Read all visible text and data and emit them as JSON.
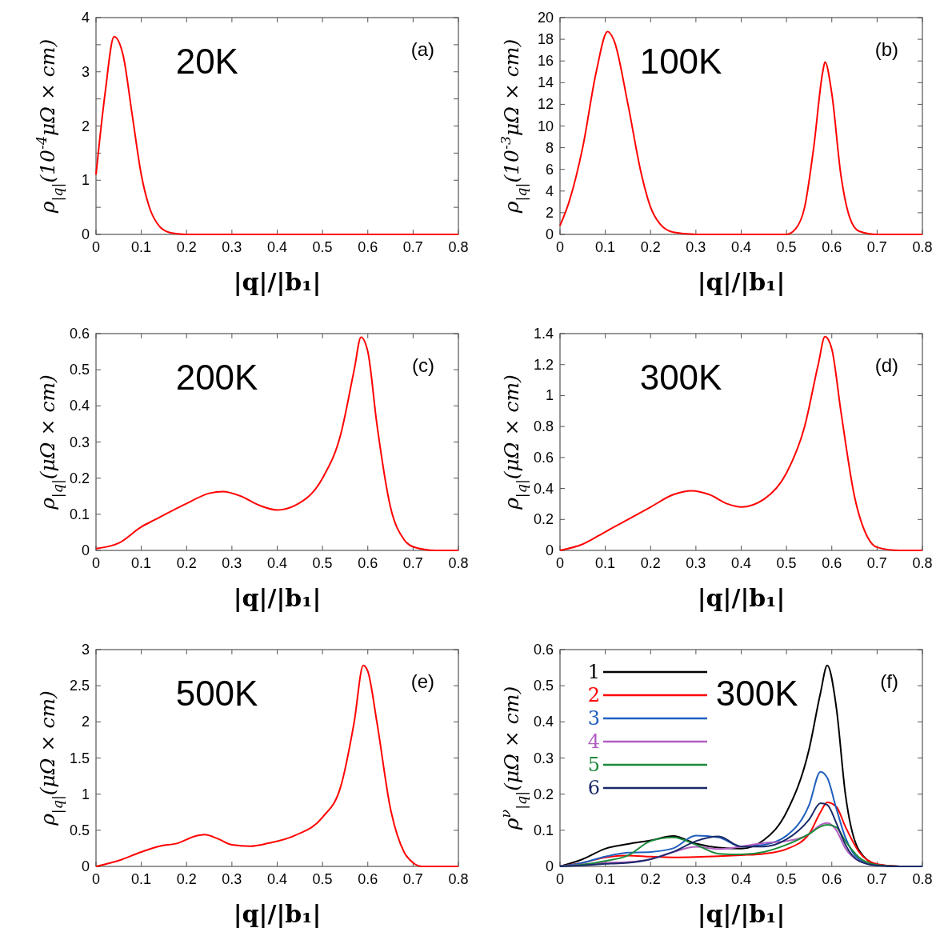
{
  "chart_data": [
    {
      "type": "line",
      "xlabel": "|q|/|b₁|",
      "ylabel": "ρ$_{|q|}$(10$^{-4}$μΩ × cm)",
      "annotations": [
        "20K",
        "(a)"
      ],
      "xlim": [
        0,
        0.8
      ],
      "ylim": [
        0,
        4
      ],
      "xticks": [
        0,
        0.1,
        0.2,
        0.3,
        0.4,
        0.5,
        0.6,
        0.7,
        0.8
      ],
      "yticks": [
        0,
        {
          "value": 0.5,
          "label": null
        },
        1,
        {
          "value": 1.5,
          "label": null
        },
        2,
        {
          "value": 2.5,
          "label": null
        },
        3,
        {
          "value": 3.5,
          "label": null
        },
        4
      ],
      "grid": false,
      "legend": false,
      "x": [
        0,
        0.02,
        0.04,
        0.06,
        0.08,
        0.1,
        0.12,
        0.14,
        0.16,
        0.18,
        0.2,
        0.3,
        0.4,
        0.5,
        0.6,
        0.7,
        0.8
      ],
      "series": [
        {
          "color": "#ff0000",
          "values": [
            1.1,
            2.6,
            3.65,
            3.3,
            2.2,
            1.1,
            0.45,
            0.15,
            0.04,
            0.01,
            0,
            0,
            0,
            0,
            0,
            0,
            0
          ]
        }
      ]
    },
    {
      "type": "line",
      "xlabel": "|q|/|b₁|",
      "ylabel": "ρ$_{|q|}$(10$^{-3}$μΩ × cm)",
      "annotations": [
        "100K",
        "(b)"
      ],
      "xlim": [
        0,
        0.8
      ],
      "ylim": [
        0,
        20
      ],
      "xticks": [
        0,
        0.1,
        0.2,
        0.3,
        0.4,
        0.5,
        0.6,
        0.7,
        0.8
      ],
      "yticks": [
        0,
        2,
        4,
        6,
        8,
        10,
        12,
        14,
        16,
        18,
        20
      ],
      "grid": false,
      "legend": false,
      "x": [
        0,
        0.02,
        0.05,
        0.08,
        0.105,
        0.12,
        0.15,
        0.18,
        0.2,
        0.22,
        0.25,
        0.3,
        0.5,
        0.52,
        0.54,
        0.56,
        0.58,
        0.585,
        0.6,
        0.62,
        0.64,
        0.66,
        0.7,
        0.8
      ],
      "series": [
        {
          "color": "#ff0000",
          "values": [
            0.8,
            3,
            8,
            15,
            18.7,
            17.8,
            12,
            5.5,
            2.5,
            1,
            0.2,
            0,
            0,
            0.5,
            2.5,
            8,
            15,
            15.9,
            13,
            5.5,
            1.5,
            0.3,
            0,
            0
          ]
        }
      ]
    },
    {
      "type": "line",
      "xlabel": "|q|/|b₁|",
      "ylabel": "ρ$_{|q|}$(μΩ × cm)",
      "annotations": [
        "200K",
        "(c)"
      ],
      "xlim": [
        0,
        0.8
      ],
      "ylim": [
        0,
        0.6
      ],
      "xticks": [
        0,
        0.1,
        0.2,
        0.3,
        0.4,
        0.5,
        0.6,
        0.7,
        0.8
      ],
      "yticks": [
        0,
        0.1,
        0.2,
        0.3,
        0.4,
        0.5,
        0.6
      ],
      "grid": false,
      "legend": false,
      "x": [
        0,
        0.05,
        0.1,
        0.13,
        0.2,
        0.25,
        0.28,
        0.32,
        0.36,
        0.4,
        0.44,
        0.5,
        0.54,
        0.57,
        0.585,
        0.6,
        0.62,
        0.65,
        0.68,
        0.7,
        0.75,
        0.8
      ],
      "series": [
        {
          "color": "#ff0000",
          "values": [
            0.005,
            0.02,
            0.065,
            0.085,
            0.13,
            0.158,
            0.163,
            0.15,
            0.125,
            0.112,
            0.125,
            0.2,
            0.32,
            0.5,
            0.59,
            0.55,
            0.35,
            0.12,
            0.03,
            0.01,
            0,
            0
          ]
        }
      ]
    },
    {
      "type": "line",
      "xlabel": "|q|/|b₁|",
      "ylabel": "ρ$_{|q|}$(μΩ × cm)",
      "annotations": [
        "300K",
        "(d)"
      ],
      "xlim": [
        0,
        0.8
      ],
      "ylim": [
        0,
        1.4
      ],
      "xticks": [
        0,
        0.1,
        0.2,
        0.3,
        0.4,
        0.5,
        0.6,
        0.7,
        0.8
      ],
      "yticks": [
        0,
        0.2,
        0.4,
        0.6,
        0.8,
        1,
        1.2,
        1.4
      ],
      "grid": false,
      "legend": false,
      "x": [
        0,
        0.05,
        0.1,
        0.15,
        0.2,
        0.25,
        0.29,
        0.33,
        0.37,
        0.4,
        0.45,
        0.5,
        0.54,
        0.57,
        0.585,
        0.6,
        0.62,
        0.65,
        0.68,
        0.7,
        0.75,
        0.8
      ],
      "series": [
        {
          "color": "#ff0000",
          "values": [
            0,
            0.04,
            0.12,
            0.2,
            0.28,
            0.36,
            0.385,
            0.36,
            0.3,
            0.28,
            0.33,
            0.5,
            0.8,
            1.2,
            1.38,
            1.3,
            0.9,
            0.35,
            0.08,
            0.02,
            0,
            0
          ]
        }
      ]
    },
    {
      "type": "line",
      "xlabel": "|q|/|b₁|",
      "ylabel": "ρ$_{|q|}$(μΩ × cm)",
      "annotations": [
        "500K",
        "(e)"
      ],
      "xlim": [
        0,
        0.8
      ],
      "ylim": [
        0,
        3
      ],
      "xticks": [
        0,
        0.1,
        0.2,
        0.3,
        0.4,
        0.5,
        0.6,
        0.7,
        0.8
      ],
      "yticks": [
        0,
        0.5,
        1,
        1.5,
        2,
        2.5,
        3
      ],
      "grid": false,
      "legend": false,
      "x": [
        0,
        0.05,
        0.1,
        0.14,
        0.18,
        0.22,
        0.24,
        0.27,
        0.3,
        0.34,
        0.38,
        0.44,
        0.5,
        0.54,
        0.57,
        0.59,
        0.6,
        0.62,
        0.65,
        0.68,
        0.7,
        0.72,
        0.8
      ],
      "series": [
        {
          "color": "#ff0000",
          "values": [
            0,
            0.08,
            0.2,
            0.28,
            0.32,
            0.42,
            0.44,
            0.38,
            0.3,
            0.28,
            0.32,
            0.43,
            0.68,
            1.1,
            2,
            2.78,
            2.7,
            2,
            0.8,
            0.2,
            0.05,
            0,
            0
          ]
        }
      ]
    },
    {
      "type": "line",
      "xlabel": "|q|/|b₁|",
      "ylabel": "ρ$^{ν}$$_{|q|}$(μΩ × cm)",
      "annotations": [
        "300K",
        "(f)"
      ],
      "xlim": [
        0,
        0.8
      ],
      "ylim": [
        0,
        0.6
      ],
      "xticks": [
        0,
        0.1,
        0.2,
        0.3,
        0.4,
        0.5,
        0.6,
        0.7,
        0.8
      ],
      "yticks": [
        0,
        0.1,
        0.2,
        0.3,
        0.4,
        0.5,
        0.6
      ],
      "grid": false,
      "legend": "top left",
      "x": [
        0,
        0.05,
        0.1,
        0.15,
        0.2,
        0.25,
        0.3,
        0.35,
        0.4,
        0.45,
        0.5,
        0.55,
        0.575,
        0.59,
        0.61,
        0.63,
        0.66,
        0.7,
        0.75,
        0.8
      ],
      "series": [
        {
          "name": "1",
          "color": "#000000",
          "values": [
            0,
            0.02,
            0.049,
            0.062,
            0.072,
            0.084,
            0.063,
            0.052,
            0.049,
            0.073,
            0.15,
            0.325,
            0.48,
            0.556,
            0.44,
            0.2,
            0.045,
            0.005,
            0,
            0
          ]
        },
        {
          "name": "2",
          "color": "#ff0000",
          "values": [
            0,
            0.01,
            0.025,
            0.03,
            0.027,
            0.025,
            0.026,
            0.028,
            0.031,
            0.035,
            0.048,
            0.09,
            0.15,
            0.177,
            0.165,
            0.11,
            0.04,
            0.006,
            0,
            0
          ]
        },
        {
          "name": "3",
          "color": "#1f5fbf",
          "values": [
            0,
            0.01,
            0.027,
            0.038,
            0.04,
            0.05,
            0.085,
            0.08,
            0.055,
            0.06,
            0.085,
            0.17,
            0.262,
            0.245,
            0.16,
            0.08,
            0.02,
            0.003,
            null,
            null
          ]
        },
        {
          "name": "4",
          "color": "#b05fc0",
          "values": [
            0,
            0.005,
            0.01,
            0.012,
            0.02,
            0.04,
            0.054,
            0.048,
            0.055,
            0.065,
            0.07,
            0.09,
            0.115,
            0.12,
            0.1,
            0.05,
            0.015,
            0.002,
            null,
            null
          ]
        },
        {
          "name": "5",
          "color": "#1a8a3a",
          "values": [
            0,
            0.005,
            0.015,
            0.03,
            0.07,
            0.08,
            0.06,
            0.035,
            0.033,
            0.04,
            0.06,
            0.09,
            0.11,
            0.115,
            0.108,
            0.07,
            0.025,
            0.004,
            0,
            0
          ]
        },
        {
          "name": "6",
          "color": "#1a2a6a",
          "values": [
            0,
            0.003,
            0.007,
            0.01,
            0.02,
            0.04,
            0.07,
            0.083,
            0.055,
            0.055,
            0.075,
            0.13,
            0.175,
            0.17,
            0.12,
            0.06,
            0.015,
            0.002,
            0,
            0
          ]
        }
      ]
    }
  ]
}
